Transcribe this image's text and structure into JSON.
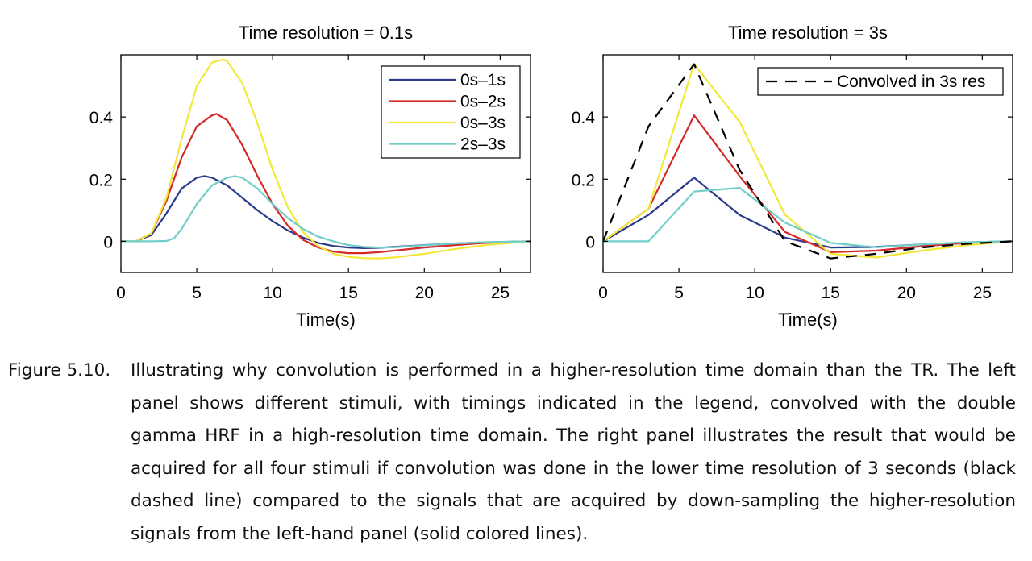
{
  "figure": {
    "label": "Figure 5.10.",
    "caption": "Illustrating why convolution is performed in a higher-resolution time domain than the TR. The left panel shows different stimuli, with timings indicated in the legend, convolved with the double gamma HRF in a high-resolution time domain. The right panel illustrates the result that would be acquired for all four stimuli if convolution was done in the lower time resolution of 3 seconds (black dashed line) compared to the signals that are acquired by down-sampling the higher-resolution signals from the left-hand panel (solid colored lines)."
  },
  "chart_data": [
    {
      "type": "line",
      "title": "Time resolution = 0.1s",
      "xlabel": "Time(s)",
      "ylabel": "",
      "xlim": [
        0,
        27
      ],
      "ylim": [
        -0.1,
        0.6
      ],
      "xticks": [
        0,
        5,
        10,
        15,
        20,
        25
      ],
      "yticks": [
        0,
        0.2,
        0.4
      ],
      "grid": false,
      "legend": "top-right",
      "series": [
        {
          "name": "0s–1s",
          "color": "#2b3a8c",
          "dash": false,
          "x": [
            0,
            1,
            2,
            3,
            4,
            5,
            5.5,
            6,
            7,
            8,
            9,
            10,
            11,
            12,
            13,
            14,
            15,
            16,
            17,
            18,
            20,
            22,
            24,
            25,
            27
          ],
          "y": [
            0,
            0.001,
            0.02,
            0.09,
            0.17,
            0.205,
            0.21,
            0.205,
            0.18,
            0.14,
            0.1,
            0.065,
            0.035,
            0.012,
            -0.005,
            -0.015,
            -0.02,
            -0.022,
            -0.021,
            -0.018,
            -0.012,
            -0.007,
            -0.003,
            -0.002,
            0
          ]
        },
        {
          "name": "0s–2s",
          "color": "#d42a2a",
          "dash": false,
          "x": [
            0,
            1,
            2,
            3,
            4,
            5,
            6,
            6.3,
            7,
            8,
            9,
            10,
            11,
            12,
            13,
            14,
            15,
            16,
            17,
            18,
            20,
            22,
            24,
            27
          ],
          "y": [
            0,
            0.001,
            0.025,
            0.13,
            0.27,
            0.37,
            0.405,
            0.41,
            0.39,
            0.31,
            0.21,
            0.12,
            0.05,
            0.005,
            -0.02,
            -0.033,
            -0.038,
            -0.038,
            -0.035,
            -0.03,
            -0.02,
            -0.012,
            -0.005,
            0
          ]
        },
        {
          "name": "0s–3s",
          "color": "#f2e83a",
          "dash": false,
          "x": [
            0,
            1,
            2,
            3,
            4,
            5,
            6,
            6.7,
            7,
            8,
            9,
            10,
            11,
            12,
            13,
            14,
            15,
            16,
            17,
            18,
            20,
            22,
            24,
            27
          ],
          "y": [
            0,
            0.001,
            0.025,
            0.14,
            0.33,
            0.5,
            0.575,
            0.585,
            0.58,
            0.51,
            0.38,
            0.23,
            0.11,
            0.03,
            -0.015,
            -0.04,
            -0.05,
            -0.054,
            -0.055,
            -0.052,
            -0.04,
            -0.025,
            -0.012,
            0
          ]
        },
        {
          "name": "2s–3s",
          "color": "#6fcfc8",
          "dash": false,
          "x": [
            0,
            1,
            2,
            3,
            3.5,
            4,
            5,
            6,
            7,
            7.5,
            8,
            9,
            10,
            11,
            12,
            13,
            14,
            15,
            16,
            17,
            18,
            20,
            22,
            24,
            27
          ],
          "y": [
            0,
            0,
            0,
            0.001,
            0.01,
            0.04,
            0.12,
            0.18,
            0.205,
            0.21,
            0.205,
            0.17,
            0.12,
            0.075,
            0.04,
            0.015,
            0,
            -0.012,
            -0.018,
            -0.02,
            -0.019,
            -0.013,
            -0.007,
            -0.003,
            0
          ]
        }
      ]
    },
    {
      "type": "line",
      "title": "Time resolution = 3s",
      "xlabel": "Time(s)",
      "ylabel": "",
      "xlim": [
        0,
        27
      ],
      "ylim": [
        -0.1,
        0.6
      ],
      "xticks": [
        0,
        5,
        10,
        15,
        20,
        25
      ],
      "yticks": [
        0,
        0.2,
        0.4
      ],
      "grid": false,
      "legend": "top-right",
      "series": [
        {
          "name": "",
          "color": "#2b3a8c",
          "dash": false,
          "x": [
            0,
            3,
            6,
            9,
            12,
            15,
            18,
            21,
            24,
            27
          ],
          "y": [
            0,
            0.085,
            0.205,
            0.085,
            0.012,
            -0.02,
            -0.018,
            -0.01,
            -0.003,
            0
          ]
        },
        {
          "name": "",
          "color": "#d42a2a",
          "dash": false,
          "x": [
            0,
            3,
            6,
            9,
            12,
            15,
            18,
            21,
            24,
            27
          ],
          "y": [
            0,
            0.105,
            0.405,
            0.21,
            0.03,
            -0.035,
            -0.03,
            -0.016,
            -0.005,
            0
          ]
        },
        {
          "name": "",
          "color": "#f2e83a",
          "dash": false,
          "x": [
            0,
            3,
            6,
            9,
            12,
            15,
            18,
            21,
            24,
            27
          ],
          "y": [
            0,
            0.105,
            0.57,
            0.385,
            0.085,
            -0.04,
            -0.052,
            -0.03,
            -0.012,
            0
          ]
        },
        {
          "name": "",
          "color": "#6fcfc8",
          "dash": false,
          "x": [
            0,
            3,
            6,
            9,
            12,
            15,
            18,
            21,
            24,
            27
          ],
          "y": [
            0,
            0,
            0.16,
            0.172,
            0.06,
            -0.005,
            -0.019,
            -0.01,
            -0.003,
            0
          ]
        },
        {
          "name": "Convolved in 3s res",
          "color": "#000000",
          "dash": true,
          "x": [
            0,
            3,
            6,
            9,
            12,
            15,
            18,
            21,
            24,
            27
          ],
          "y": [
            0,
            0.37,
            0.57,
            0.23,
            0,
            -0.055,
            -0.04,
            -0.02,
            -0.008,
            0
          ]
        }
      ]
    }
  ]
}
